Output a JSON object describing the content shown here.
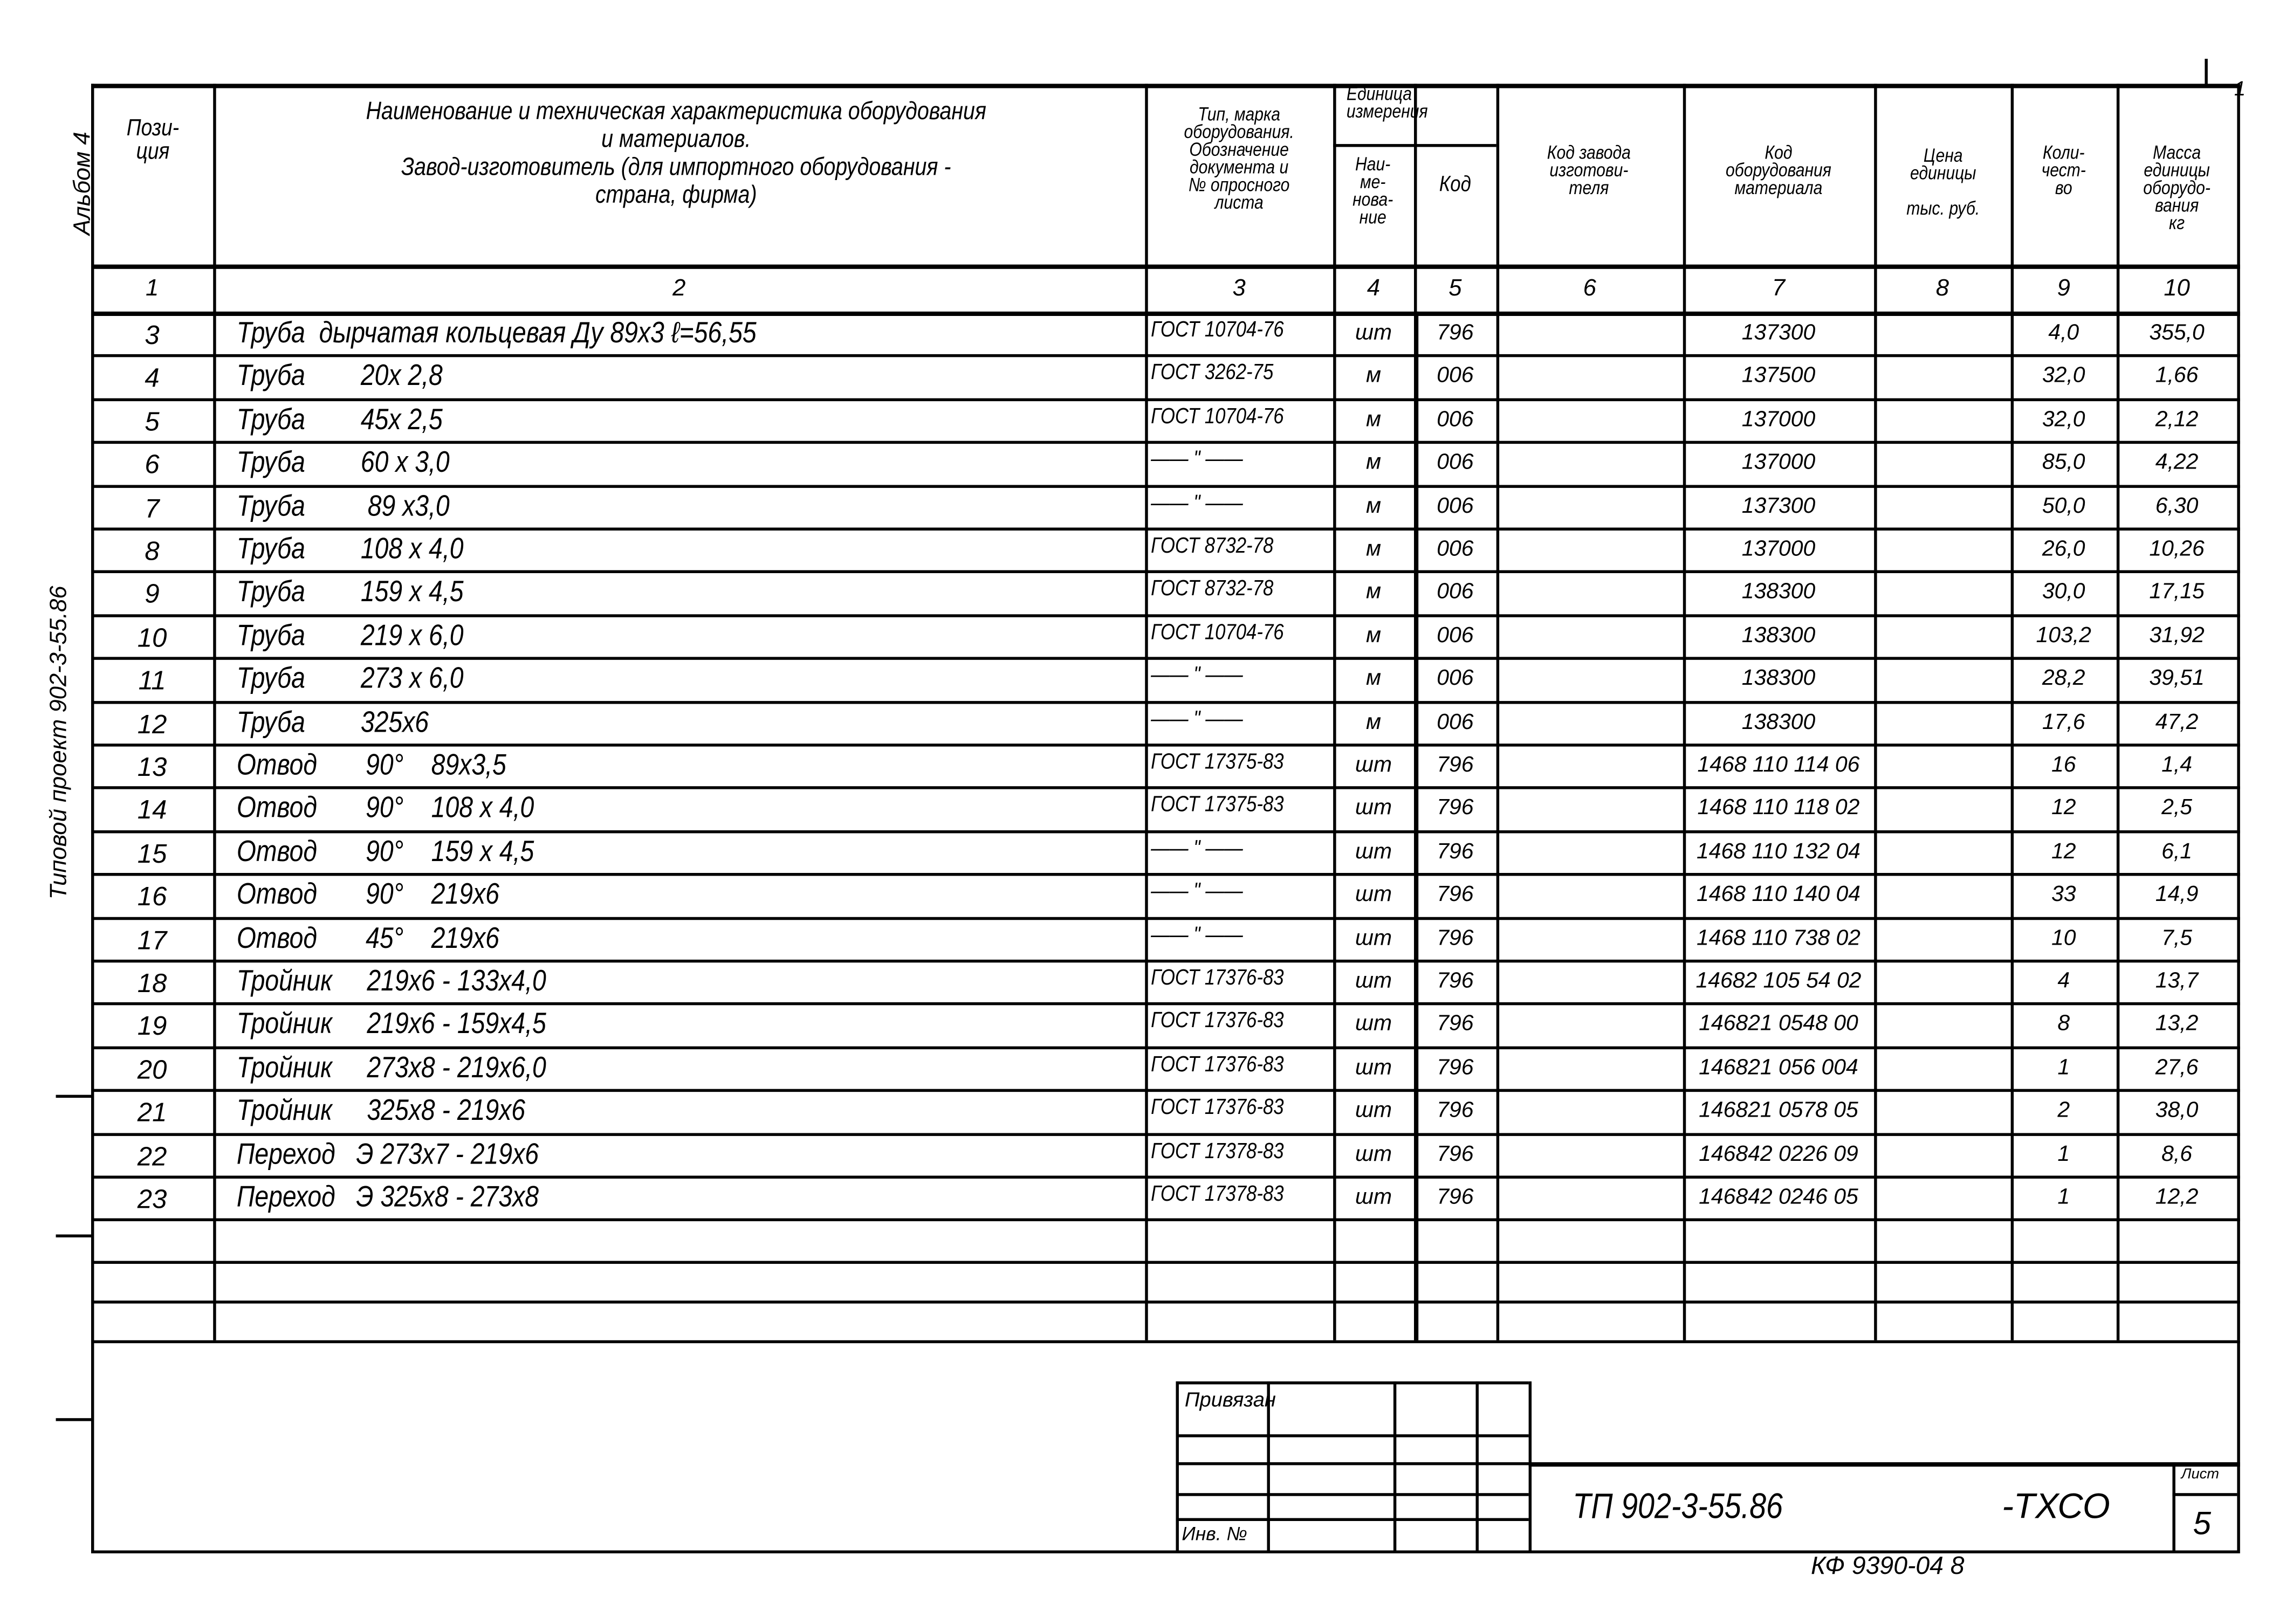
{
  "side": {
    "album": "Альбом 4",
    "project": "Типовой проект 902-3-55.86"
  },
  "corner_mark": "1",
  "header": {
    "position": "Пози-\nция",
    "name": "Наименование и техническая характеристика оборудования\nи материалов.\nЗавод-изготовитель (для импортного оборудования -\nстрана, фирма)",
    "type": "Тип, марка\nоборудования.\nОбозначение\nдокумента и\n№ опросного\nлиста",
    "unit_group": "Единица\nизмерения",
    "unit_name": "Наи-\nме-\nнова-\nние",
    "unit_code": "Код",
    "maker_code": "Код завода\nизготови-\nтеля",
    "material_code": "Код\nоборудования\nматериала",
    "price": "Цена\nединицы\n\nтыс. руб.",
    "qty": "Коли-\nчест-\nво",
    "mass": "Масса\nединицы\nоборудо-\nвания\nкг"
  },
  "column_numbers": [
    "1",
    "2",
    "3",
    "4",
    "5",
    "6",
    "7",
    "8",
    "9",
    "10"
  ],
  "rows": [
    {
      "pos": "3",
      "name": "Труба  дырчатая кольцевая Ду 89х3 ℓ=56,55",
      "type": "ГОСТ 10704-76",
      "unit": "шт",
      "code": "796",
      "mcode": "137300",
      "qty": "4,0",
      "mass": "355,0"
    },
    {
      "pos": "4",
      "name": "Труба        20х 2,8",
      "type": "ГОСТ 3262-75",
      "unit": "м",
      "code": "006",
      "mcode": "137500",
      "qty": "32,0",
      "mass": "1,66"
    },
    {
      "pos": "5",
      "name": "Труба        45х 2,5",
      "type": "ГОСТ 10704-76",
      "unit": "м",
      "code": "006",
      "mcode": "137000",
      "qty": "32,0",
      "mass": "2,12"
    },
    {
      "pos": "6",
      "name": "Труба        60 х 3,0",
      "type": "—— \" ——",
      "unit": "м",
      "code": "006",
      "mcode": "137000",
      "qty": "85,0",
      "mass": "4,22"
    },
    {
      "pos": "7",
      "name": "Труба         89 х3,0",
      "type": "—— \" ——",
      "unit": "м",
      "code": "006",
      "mcode": "137300",
      "qty": "50,0",
      "mass": "6,30"
    },
    {
      "pos": "8",
      "name": "Труба        108 х 4,0",
      "type": "ГОСТ 8732-78",
      "unit": "м",
      "code": "006",
      "mcode": "137000",
      "qty": "26,0",
      "mass": "10,26"
    },
    {
      "pos": "9",
      "name": "Труба        159 х 4,5",
      "type": "ГОСТ 8732-78",
      "unit": "м",
      "code": "006",
      "mcode": "138300",
      "qty": "30,0",
      "mass": "17,15"
    },
    {
      "pos": "10",
      "name": "Труба        219 х 6,0",
      "type": "ГОСТ 10704-76",
      "unit": "м",
      "code": "006",
      "mcode": "138300",
      "qty": "103,2",
      "mass": "31,92"
    },
    {
      "pos": "11",
      "name": "Труба        273 х 6,0",
      "type": "—— \" ——",
      "unit": "м",
      "code": "006",
      "mcode": "138300",
      "qty": "28,2",
      "mass": "39,51"
    },
    {
      "pos": "12",
      "name": "Труба        325х6",
      "type": "—— \" ——",
      "unit": "м",
      "code": "006",
      "mcode": "138300",
      "qty": "17,6",
      "mass": "47,2"
    },
    {
      "pos": "13",
      "name": "Отвод       90°    89х3,5",
      "type": "ГОСТ 17375-83",
      "unit": "шт",
      "code": "796",
      "mcode": "1468 110 114 06",
      "qty": "16",
      "mass": "1,4"
    },
    {
      "pos": "14",
      "name": "Отвод       90°    108 х 4,0",
      "type": "ГОСТ 17375-83",
      "unit": "шт",
      "code": "796",
      "mcode": "1468 110 118 02",
      "qty": "12",
      "mass": "2,5"
    },
    {
      "pos": "15",
      "name": "Отвод       90°    159 х 4,5",
      "type": "—— \" ——",
      "unit": "шт",
      "code": "796",
      "mcode": "1468 110 132 04",
      "qty": "12",
      "mass": "6,1"
    },
    {
      "pos": "16",
      "name": "Отвод       90°    219х6",
      "type": "—— \" ——",
      "unit": "шт",
      "code": "796",
      "mcode": "1468 110 140 04",
      "qty": "33",
      "mass": "14,9"
    },
    {
      "pos": "17",
      "name": "Отвод       45°    219х6",
      "type": "—— \" ——",
      "unit": "шт",
      "code": "796",
      "mcode": "1468 110 738 02",
      "qty": "10",
      "mass": "7,5"
    },
    {
      "pos": "18",
      "name": "Тройник     219х6 - 133х4,0",
      "type": "ГОСТ 17376-83",
      "unit": "шт",
      "code": "796",
      "mcode": "14682 105 54 02",
      "qty": "4",
      "mass": "13,7"
    },
    {
      "pos": "19",
      "name": "Тройник     219х6 - 159х4,5",
      "type": "ГОСТ 17376-83",
      "unit": "шт",
      "code": "796",
      "mcode": "146821 0548 00",
      "qty": "8",
      "mass": "13,2"
    },
    {
      "pos": "20",
      "name": "Тройник     273х8 - 219х6,0",
      "type": "ГОСТ 17376-83",
      "unit": "шт",
      "code": "796",
      "mcode": "146821 056 004",
      "qty": "1",
      "mass": "27,6"
    },
    {
      "pos": "21",
      "name": "Тройник     325х8 - 219х6",
      "type": "ГОСТ 17376-83",
      "unit": "шт",
      "code": "796",
      "mcode": "146821 0578 05",
      "qty": "2",
      "mass": "38,0"
    },
    {
      "pos": "22",
      "name": "Переход   Э 273х7 - 219х6",
      "type": "ГОСТ 17378-83",
      "unit": "шт",
      "code": "796",
      "mcode": "146842 0226 09",
      "qty": "1",
      "mass": "8,6"
    },
    {
      "pos": "23",
      "name": "Переход   Э 325х8 - 273х8",
      "type": "ГОСТ 17378-83",
      "unit": "шт",
      "code": "796",
      "mcode": "146842 0246 05",
      "qty": "1",
      "mass": "12,2"
    }
  ],
  "stamp": {
    "attached": "Привязан",
    "inv_no": "Инв. №"
  },
  "title_block": {
    "doc_code": "ТП 902-3-55.86",
    "suffix": "-ТХСО",
    "sheet_label": "Лист",
    "sheet": "5"
  },
  "footer_code": "КФ 9390-04  8"
}
